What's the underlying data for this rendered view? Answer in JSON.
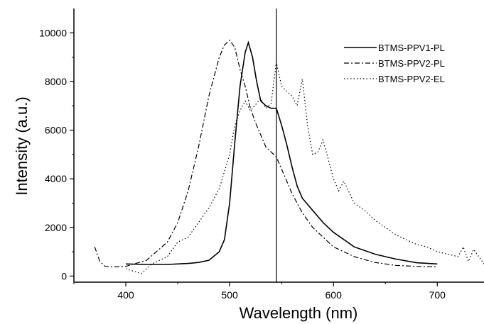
{
  "chart_data": {
    "type": "line",
    "title": "",
    "xlabel": "Wavelength (nm)",
    "ylabel": "Intensity (a.u.)",
    "xlim": [
      350,
      745
    ],
    "ylim": [
      -250,
      11000
    ],
    "xticks": [
      400,
      500,
      600,
      700
    ],
    "yticks": [
      0,
      2000,
      4000,
      6000,
      8000,
      10000
    ],
    "grid": false,
    "legend_position": "top-right",
    "reference_line_x": 545,
    "series": [
      {
        "name": "BTMS-PPV1-PL",
        "style": "solid",
        "color": "#000000",
        "x": [
          400,
          420,
          440,
          460,
          470,
          480,
          490,
          495,
          500,
          505,
          510,
          515,
          518,
          522,
          526,
          530,
          535,
          540,
          545,
          550,
          555,
          560,
          565,
          570,
          580,
          590,
          600,
          620,
          640,
          660,
          680,
          700
        ],
        "y": [
          500,
          480,
          480,
          520,
          560,
          650,
          1000,
          1500,
          3000,
          5500,
          7800,
          9200,
          9600,
          9000,
          8000,
          7200,
          7000,
          6900,
          6900,
          6200,
          5400,
          4500,
          3700,
          3200,
          2700,
          2200,
          1800,
          1200,
          900,
          700,
          550,
          500
        ]
      },
      {
        "name": "BTMS-PPV2-PL",
        "style": "dashdot",
        "color": "#000000",
        "x": [
          370,
          375,
          380,
          390,
          400,
          420,
          440,
          450,
          460,
          470,
          480,
          490,
          495,
          500,
          505,
          510,
          515,
          520,
          525,
          530,
          535,
          540,
          545,
          550,
          560,
          570,
          580,
          600,
          620,
          640,
          660,
          680,
          700
        ],
        "y": [
          1200,
          600,
          400,
          380,
          400,
          650,
          1400,
          2200,
          3500,
          5300,
          7400,
          9000,
          9500,
          9700,
          9400,
          8500,
          7800,
          6900,
          6300,
          5800,
          5300,
          5100,
          4900,
          4400,
          3400,
          2600,
          2000,
          1200,
          800,
          560,
          440,
          400,
          380
        ]
      },
      {
        "name": "BTMS-PPV2-EL",
        "style": "dotted",
        "color": "#000000",
        "x": [
          400,
          415,
          425,
          440,
          450,
          460,
          470,
          480,
          490,
          500,
          505,
          510,
          515,
          520,
          530,
          535,
          540,
          545,
          550,
          555,
          560,
          565,
          570,
          575,
          580,
          585,
          590,
          595,
          600,
          605,
          610,
          620,
          630,
          640,
          650,
          660,
          670,
          680,
          690,
          700,
          710,
          720,
          725,
          730,
          735,
          740,
          745
        ],
        "y": [
          300,
          100,
          500,
          800,
          1400,
          1600,
          2200,
          2800,
          3600,
          5000,
          6200,
          6800,
          7200,
          6800,
          7300,
          6900,
          7100,
          8800,
          7800,
          7600,
          7400,
          7000,
          8100,
          6200,
          5000,
          5100,
          5600,
          4800,
          4000,
          3500,
          3900,
          3000,
          2700,
          2300,
          2000,
          1700,
          1500,
          1300,
          1200,
          1000,
          900,
          800,
          1200,
          600,
          1100,
          800,
          500
        ]
      }
    ]
  }
}
